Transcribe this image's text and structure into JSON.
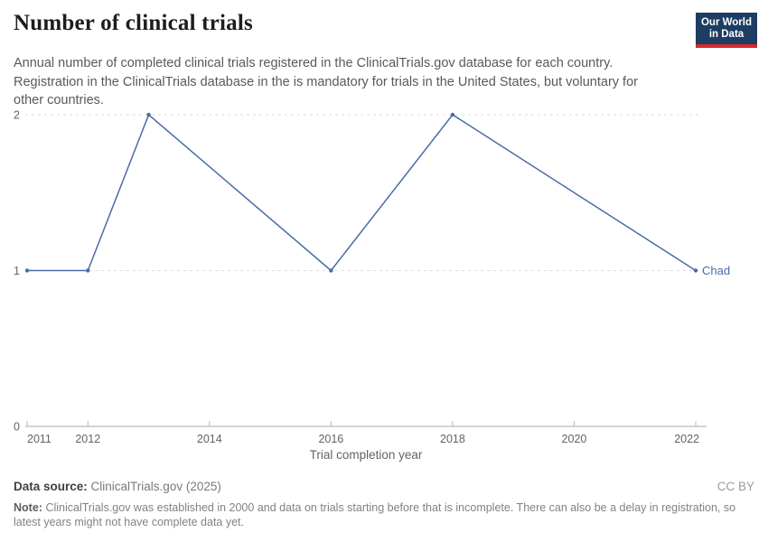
{
  "header": {
    "title": "Number of clinical trials",
    "subtitle": "Annual number of completed clinical trials registered in the ClinicalTrials.gov database for each country. Registration in the ClinicalTrials database in the is mandatory for trials in the United States, but voluntary for other countries.",
    "logo": {
      "line1": "Our World",
      "line2": "in Data",
      "bg_color": "#1d3d63",
      "accent_color": "#d7292f"
    }
  },
  "chart_data": {
    "type": "line",
    "title": "Number of clinical trials",
    "xlabel": "Trial completion year",
    "ylabel": "",
    "x_range": [
      2011,
      2022
    ],
    "y_range": [
      0,
      2
    ],
    "x_ticks": [
      2011,
      2012,
      2014,
      2016,
      2018,
      2020,
      2022
    ],
    "y_ticks": [
      0,
      1,
      2
    ],
    "grid": "horizontal-dashed",
    "legend": "end-of-line-label",
    "axis_color": "#a8a8a8",
    "tick_color": "#b8b8b8",
    "gridline_color": "#dedede",
    "series": [
      {
        "name": "Chad",
        "color": "#4a6ba8",
        "points": [
          {
            "x": 2011,
            "y": 1
          },
          {
            "x": 2012,
            "y": 1
          },
          {
            "x": 2013,
            "y": 2
          },
          {
            "x": 2016,
            "y": 1
          },
          {
            "x": 2018,
            "y": 2
          },
          {
            "x": 2022,
            "y": 1
          }
        ]
      }
    ]
  },
  "footer": {
    "source_label": "Data source:",
    "source_value": "ClinicalTrials.gov (2025)",
    "license": "CC BY",
    "note_label": "Note:",
    "note_text": "ClinicalTrials.gov was established in 2000 and data on trials starting before that is incomplete. There can also be a delay in registration, so latest years might not have complete data yet."
  }
}
